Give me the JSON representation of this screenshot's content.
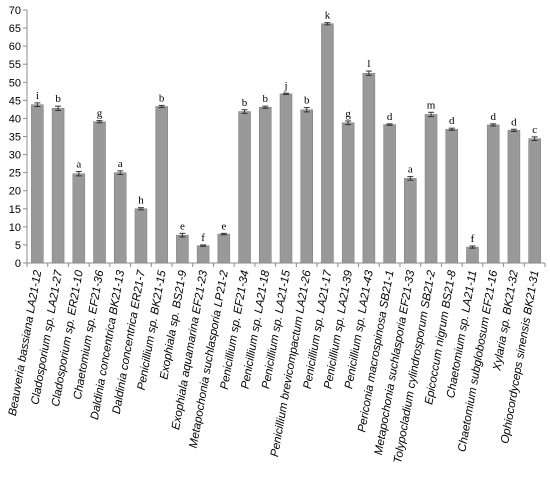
{
  "chart_data": {
    "type": "bar",
    "title": "",
    "xlabel": "",
    "ylabel": "",
    "ylim": [
      0,
      70
    ],
    "yticks": [
      0,
      5,
      10,
      15,
      20,
      25,
      30,
      35,
      40,
      45,
      50,
      55,
      60,
      65,
      70
    ],
    "grid": false,
    "bar_color": "#999999",
    "categories": [
      "Beauveria bassiana LA21-12",
      "Cladosporium sp. LA21-27",
      "Cladosporium sp. ER21-10",
      "Chaetomium sp. EF21-36",
      "Daldinia concentrica BK21-13",
      "Daldinia concentrica ER21-7",
      "Penicillium sp. BK21-15",
      "Exophiala sp. BS21-9",
      "Exophiala aquamarina EF21-23",
      "Metapochonia suchlasporia LP21-2",
      "Penicillium sp. EF21-34",
      "Penicillium sp. LA21-18",
      "Penicillium sp. LA21-15",
      "Penicillium brevicompactum LA21-26",
      "Penicillium sp. LA21-17",
      "Penicillium sp. LA21-39",
      "Penicillium sp. LA21-43",
      "Periconia macrospinosa SB21-1",
      "Metapochonia suchlasporia EF21-33",
      "Tolypocladium cylindrosporum SB21-2",
      "Epicoccum nigrum BS21-8",
      "Chaetomium sp. LA21-11",
      "Chaetomium subglobosum EF21-16",
      "Xylaria sp. BK21-32",
      "Ophiocordyceps sinensis BK21-31"
    ],
    "values": [
      43.8,
      42.8,
      24.7,
      39.1,
      25.0,
      15.0,
      43.3,
      7.7,
      4.8,
      8.0,
      41.9,
      43.1,
      46.8,
      42.4,
      66.2,
      38.8,
      52.5,
      38.3,
      23.4,
      41.1,
      37.0,
      4.4,
      38.2,
      36.7,
      34.4
    ],
    "errors": [
      0.5,
      0.6,
      0.6,
      0.3,
      0.5,
      0.3,
      0.3,
      0.5,
      0.2,
      0.2,
      0.5,
      0.3,
      0.2,
      0.6,
      0.3,
      0.5,
      0.6,
      0.2,
      0.5,
      0.6,
      0.3,
      0.3,
      0.3,
      0.3,
      0.5
    ],
    "significance_labels": [
      "i",
      "b",
      "a",
      "g",
      "a",
      "h",
      "b",
      "e",
      "f",
      "e",
      "b",
      "b",
      "j",
      "b",
      "k",
      "g",
      "l",
      "d",
      "a",
      "m",
      "d",
      "f",
      "d",
      "d",
      "c"
    ]
  }
}
